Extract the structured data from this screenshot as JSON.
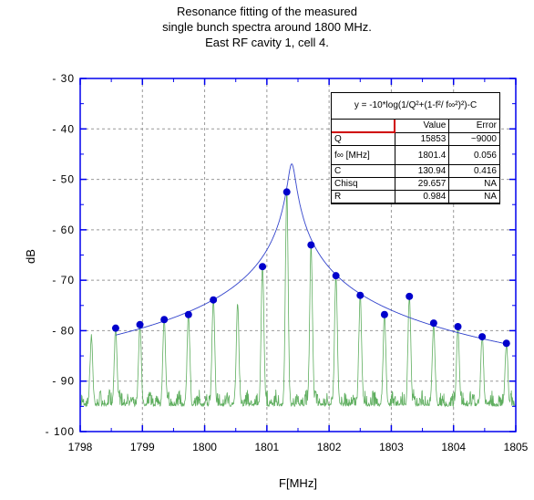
{
  "title_lines": [
    "Resonance fitting of the measured",
    "single bunch spectra around 1800 MHz.",
    "East RF cavity 1, cell 4."
  ],
  "fit_table": {
    "equation": "y = -10*log(1/Q²+(1-f²/ f∞²)²)-C",
    "headers": [
      "",
      "Value",
      "Error"
    ],
    "rows": [
      {
        "param": "Q",
        "value": "15853",
        "error": "~9000"
      },
      {
        "param": "f∞ [MHz]",
        "value": "1801.4",
        "error": "0.056"
      },
      {
        "param": "C",
        "value": "130.94",
        "error": "0.416"
      },
      {
        "param": "Chisq",
        "value": "29.657",
        "error": "NA"
      },
      {
        "param": "R",
        "value": "0.984",
        "error": "NA"
      }
    ]
  },
  "chart_data": {
    "type": "scatter",
    "title": "Resonance fitting of the measured single bunch spectra around 1800 MHz. East RF cavity 1, cell 4.",
    "xlabel": "F[MHz]",
    "ylabel": "dB",
    "xlim": [
      1798,
      1805
    ],
    "ylim": [
      -100,
      -30
    ],
    "x_ticks": [
      1798,
      1799,
      1800,
      1801,
      1802,
      1803,
      1804,
      1805
    ],
    "y_ticks": [
      -100,
      -90,
      -80,
      -70,
      -60,
      -50,
      -40,
      -30
    ],
    "x_tick_labels": [
      "1798",
      "1799",
      "1800",
      "1801",
      "1802",
      "1803",
      "1804",
      "1805"
    ],
    "y_tick_labels": [
      "-100",
      "-90",
      "-80",
      "-70",
      "-60",
      "-50",
      "-40",
      "-30"
    ],
    "grid": true,
    "colors": {
      "points": "#0000cc",
      "fit": "#3344cc",
      "spectrum": "#5fae5f"
    },
    "series": [
      {
        "kind": "points",
        "x": [
          1798.57,
          1798.96,
          1799.35,
          1799.74,
          1800.14,
          1800.93,
          1801.32,
          1801.71,
          1802.11,
          1802.5,
          1802.89,
          1803.29,
          1803.68,
          1804.07,
          1804.46,
          1804.85
        ],
        "y": [
          -79.5,
          -78.8,
          -77.8,
          -76.8,
          -73.9,
          -67.3,
          -52.5,
          -63.0,
          -69.1,
          -73.0,
          -76.8,
          -73.2,
          -78.5,
          -79.2,
          -81.2,
          -82.5
        ]
      },
      {
        "kind": "fit",
        "f0": 1801.4,
        "Q": 15853,
        "C": 130.94,
        "x_range": [
          1798.57,
          1804.85
        ]
      },
      {
        "kind": "spectrum",
        "peak_x": [
          1798.18,
          1798.57,
          1798.96,
          1799.35,
          1799.74,
          1800.14,
          1800.53,
          1800.93,
          1801.32,
          1801.71,
          1802.11,
          1802.5,
          1802.89,
          1803.29,
          1803.68,
          1804.07,
          1804.46,
          1804.85
        ],
        "peak_y": [
          -81.2,
          -79.5,
          -78.8,
          -77.8,
          -76.8,
          -73.9,
          -75.0,
          -67.3,
          -52.5,
          -63.0,
          -69.1,
          -73.0,
          -76.8,
          -73.2,
          -78.5,
          -79.2,
          -81.2,
          -82.5
        ],
        "floor": -95
      }
    ]
  }
}
